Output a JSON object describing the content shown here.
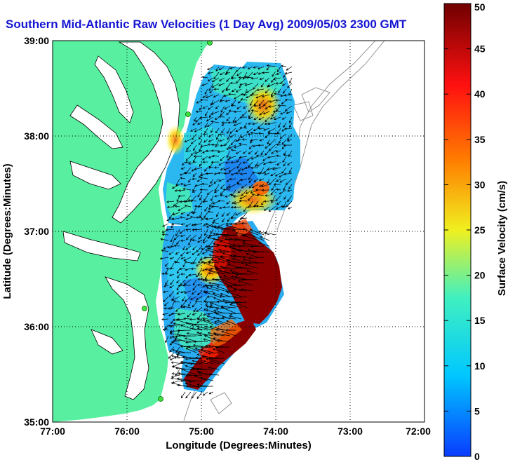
{
  "title": "Southern Mid-Atlantic Raw Velocities (1 Day Avg) 2009/05/03 2300 GMT",
  "map": {
    "x_axis": {
      "label": "Longitude (Degrees:Minutes)",
      "ticks": [
        "77:00",
        "76:00",
        "75:00",
        "74:00",
        "73:00",
        "72:00"
      ]
    },
    "y_axis": {
      "label": "Latitude (Degrees:Minutes)",
      "ticks": [
        "39:00",
        "38:00",
        "37:00",
        "36:00",
        "35:00"
      ]
    },
    "land_color": "#58f0a0",
    "grid": "dotted"
  },
  "colorbar": {
    "label": "Surface Velocity (cm/s)",
    "ticks": [
      "50",
      "45",
      "40",
      "35",
      "30",
      "25",
      "20",
      "15",
      "10",
      "5",
      "0"
    ],
    "range": [
      0,
      50
    ],
    "colormap": [
      "#0a3cff",
      "#00c8ff",
      "#40f0c0",
      "#f0f020",
      "#ff8000",
      "#ff1010",
      "#700000"
    ]
  }
}
